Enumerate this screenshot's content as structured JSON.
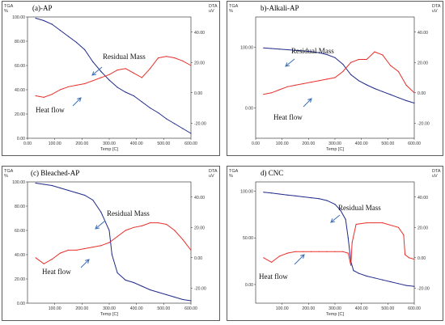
{
  "chart_data": [
    {
      "type": "line",
      "title": "(a)-AP",
      "left_axis_unit": "TGA\n%",
      "right_axis_unit": "DTA\nuV",
      "xlabel": "Temp [C]",
      "xlim": [
        0,
        600
      ],
      "ylim_left": [
        0,
        100
      ],
      "ylim_right": [
        -30,
        50
      ],
      "x_ticks": [
        "0.00",
        "100.00",
        "200.00",
        "300.00",
        "400.00",
        "500.00",
        "600.00"
      ],
      "y_left_ticks": [
        "0.00",
        "20.00",
        "40.00",
        "60.00",
        "80.00",
        "100.00"
      ],
      "y_right_ticks": [
        "-20.00",
        "0.00",
        "20.00",
        "40.00"
      ],
      "annotations": [
        "Residual Mass",
        "Heat flow"
      ],
      "series": [
        {
          "role": "TGA",
          "axis": "left",
          "color": "#1f2a8a",
          "x": [
            30,
            60,
            90,
            120,
            150,
            180,
            210,
            240,
            270,
            300,
            330,
            360,
            390,
            420,
            450,
            480,
            510,
            540,
            570,
            600
          ],
          "y": [
            99,
            97,
            94,
            89,
            84,
            79,
            73,
            63,
            55,
            48,
            42,
            38,
            35,
            30,
            25,
            21,
            16,
            12,
            8,
            4
          ]
        },
        {
          "role": "DTA",
          "axis": "right",
          "color": "#e8302b",
          "x": [
            30,
            60,
            90,
            120,
            150,
            180,
            210,
            240,
            270,
            300,
            330,
            360,
            390,
            420,
            450,
            480,
            510,
            540,
            570,
            600
          ],
          "y": [
            -2,
            -3,
            -1,
            2,
            4,
            5,
            6,
            8,
            10,
            12,
            15,
            16,
            13,
            10,
            16,
            23,
            24,
            23,
            21,
            18
          ]
        }
      ]
    },
    {
      "type": "line",
      "title": "b)-Alkali-AP",
      "left_axis_unit": "TGA\n%",
      "right_axis_unit": "DTA\nuV",
      "xlabel": "Temp [C]",
      "xlim": [
        0,
        600
      ],
      "ylim_left": [
        -50,
        150
      ],
      "ylim_right": [
        -30,
        50
      ],
      "x_ticks": [
        "0.00",
        "100.00",
        "200.00",
        "300.00",
        "400.00",
        "500.00",
        "600.00"
      ],
      "y_left_ticks": [
        "0.00",
        "100.00"
      ],
      "y_right_ticks": [
        "-20.00",
        "0.00",
        "20.00",
        "40.00"
      ],
      "annotations": [
        "Residual Mass",
        "Heat flow"
      ],
      "series": [
        {
          "role": "TGA",
          "axis": "left",
          "color": "#1f2a8a",
          "x": [
            30,
            60,
            90,
            120,
            150,
            180,
            210,
            240,
            270,
            300,
            330,
            360,
            390,
            420,
            450,
            480,
            510,
            540,
            570,
            600
          ],
          "y": [
            99,
            98,
            97,
            96,
            95,
            94,
            93,
            91,
            88,
            83,
            72,
            55,
            45,
            38,
            32,
            27,
            22,
            17,
            12,
            8
          ]
        },
        {
          "role": "DTA",
          "axis": "right",
          "color": "#e8302b",
          "x": [
            30,
            60,
            90,
            120,
            150,
            180,
            210,
            240,
            270,
            300,
            330,
            360,
            390,
            420,
            450,
            480,
            510,
            540,
            570,
            600
          ],
          "y": [
            -1,
            0,
            2,
            4,
            5,
            6,
            7,
            8,
            9,
            10,
            14,
            20,
            22,
            22,
            27,
            25,
            18,
            14,
            5,
            0
          ]
        }
      ]
    },
    {
      "type": "line",
      "title": "(c) Bleached-AP",
      "left_axis_unit": "TGA\n%",
      "right_axis_unit": "DTA\nuV",
      "xlabel": "Temp [C]",
      "xlim": [
        0,
        600
      ],
      "ylim_left": [
        0,
        100
      ],
      "ylim_right": [
        -30,
        50
      ],
      "x_ticks": [
        "100.00",
        "200.00",
        "300.00",
        "400.00",
        "500.00",
        "600.00"
      ],
      "y_left_ticks": [
        "0.00",
        "20.00",
        "40.00",
        "60.00",
        "80.00",
        "100.00"
      ],
      "y_right_ticks": [
        "-20.00",
        "0.00",
        "20.00",
        "40.00"
      ],
      "annotations": [
        "Residual Mass",
        "Heat flow"
      ],
      "series": [
        {
          "role": "TGA",
          "axis": "left",
          "color": "#1f2a8a",
          "x": [
            30,
            60,
            90,
            120,
            150,
            180,
            210,
            240,
            270,
            300,
            310,
            330,
            360,
            390,
            420,
            450,
            480,
            510,
            540,
            570,
            600
          ],
          "y": [
            99,
            98,
            97,
            95,
            93,
            91,
            89,
            85,
            75,
            60,
            40,
            25,
            19,
            17,
            14,
            11,
            9,
            7,
            5,
            3,
            2
          ]
        },
        {
          "role": "DTA",
          "axis": "right",
          "color": "#e8302b",
          "x": [
            30,
            60,
            90,
            120,
            150,
            180,
            210,
            240,
            270,
            300,
            330,
            360,
            390,
            420,
            450,
            480,
            510,
            540,
            570,
            600
          ],
          "y": [
            0,
            -4,
            -1,
            3,
            5,
            5,
            6,
            7,
            8,
            10,
            14,
            18,
            20,
            21,
            23,
            23,
            22,
            18,
            12,
            5
          ]
        }
      ]
    },
    {
      "type": "line",
      "title": "d) CNC",
      "left_axis_unit": "TGA\n%",
      "right_axis_unit": "DTA\nuV",
      "xlabel": "Temp [C]",
      "xlim": [
        0,
        600
      ],
      "ylim_left": [
        -20,
        110
      ],
      "ylim_right": [
        -30,
        50
      ],
      "x_ticks": [
        "100.00",
        "200.00",
        "300.00",
        "400.00",
        "500.00",
        "600.00"
      ],
      "y_left_ticks": [
        "0.00",
        "50.00",
        "100.00"
      ],
      "y_right_ticks": [
        "-20.00",
        "0.00",
        "20.00",
        "40.00"
      ],
      "annotations": [
        "Residual Mass",
        "Heat flow"
      ],
      "series": [
        {
          "role": "TGA",
          "axis": "left",
          "color": "#1f2a8a",
          "x": [
            30,
            60,
            90,
            120,
            150,
            180,
            210,
            240,
            270,
            300,
            320,
            340,
            350,
            360,
            370,
            390,
            420,
            450,
            480,
            510,
            540,
            570,
            600
          ],
          "y": [
            99,
            98,
            97,
            96,
            95,
            94,
            93,
            92,
            90,
            86,
            80,
            70,
            50,
            25,
            15,
            12,
            9,
            7,
            5,
            3,
            1,
            -1,
            -2
          ]
        },
        {
          "role": "DTA",
          "axis": "right",
          "color": "#e8302b",
          "x": [
            30,
            60,
            90,
            120,
            150,
            180,
            210,
            240,
            270,
            300,
            330,
            350,
            360,
            365,
            380,
            420,
            480,
            540,
            560,
            565,
            580,
            600
          ],
          "y": [
            0,
            -3,
            1,
            3,
            4,
            4,
            4,
            4,
            4,
            4,
            4,
            3,
            -5,
            10,
            22,
            23,
            23,
            20,
            15,
            2,
            0,
            -1
          ]
        }
      ]
    }
  ]
}
